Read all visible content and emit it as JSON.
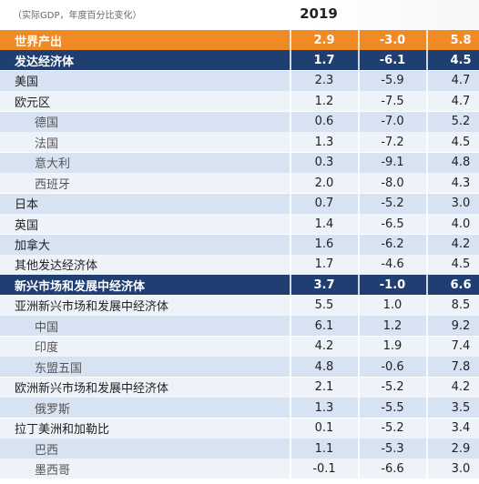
{
  "header": {
    "note": "（实际GDP，年度百分比变化）",
    "year": "2019"
  },
  "table": {
    "rows": [
      [
        "世界产出",
        "2.9",
        "-3.0",
        "5.8"
      ],
      [
        "发达经济体",
        "1.7",
        "-6.1",
        "4.5"
      ],
      [
        "美国",
        "2.3",
        "-5.9",
        "4.7"
      ],
      [
        "欧元区",
        "1.2",
        "-7.5",
        "4.7"
      ],
      [
        "德国",
        "0.6",
        "-7.0",
        "5.2"
      ],
      [
        "法国",
        "1.3",
        "-7.2",
        "4.5"
      ],
      [
        "意大利",
        "0.3",
        "-9.1",
        "4.8"
      ],
      [
        "西班牙",
        "2.0",
        "-8.0",
        "4.3"
      ],
      [
        "日本",
        "0.7",
        "-5.2",
        "3.0"
      ],
      [
        "英国",
        "1.4",
        "-6.5",
        "4.0"
      ],
      [
        "加拿大",
        "1.6",
        "-6.2",
        "4.2"
      ],
      [
        "其他发达经济体",
        "1.7",
        "-4.6",
        "4.5"
      ],
      [
        "新兴市场和发展中经济体",
        "3.7",
        "-1.0",
        "6.6"
      ],
      [
        "亚洲新兴市场和发展中经济体",
        "5.5",
        "1.0",
        "8.5"
      ],
      [
        "中国",
        "6.1",
        "1.2",
        "9.2"
      ],
      [
        "印度",
        "4.2",
        "1.9",
        "7.4"
      ],
      [
        "东盟五国",
        "4.8",
        "-0.6",
        "7.8"
      ],
      [
        "欧洲新兴市场和发展中经济体",
        "2.1",
        "-5.2",
        "4.2"
      ],
      [
        "俄罗斯",
        "1.3",
        "-5.5",
        "3.5"
      ],
      [
        "拉丁美洲和加勒比",
        "0.1",
        "-5.2",
        "3.4"
      ],
      [
        "巴西",
        "1.1",
        "-5.3",
        "2.9"
      ],
      [
        "墨西哥",
        "-0.1",
        "-6.6",
        "3.0"
      ]
    ]
  }
}
